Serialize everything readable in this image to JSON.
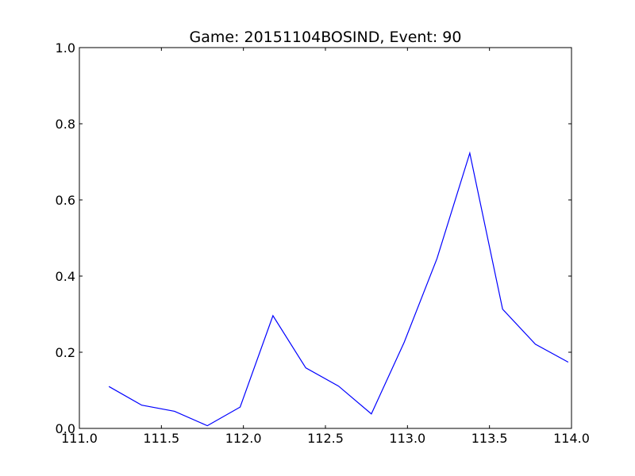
{
  "chart_data": {
    "type": "line",
    "title": "Game: 20151104BOSIND, Event: 90",
    "xlabel": "",
    "ylabel": "",
    "xlim": [
      111.0,
      114.0
    ],
    "ylim": [
      0.0,
      1.0
    ],
    "x_ticks": [
      "111.0",
      "111.5",
      "112.0",
      "112.5",
      "113.0",
      "113.5",
      "114.0"
    ],
    "y_ticks": [
      "0.0",
      "0.2",
      "0.4",
      "0.6",
      "0.8",
      "1.0"
    ],
    "grid": false,
    "series": [
      {
        "color": "#0000ff",
        "x": [
          111.18,
          111.38,
          111.58,
          111.78,
          111.98,
          112.18,
          112.38,
          112.58,
          112.78,
          112.98,
          113.18,
          113.38,
          113.58,
          113.78,
          113.98
        ],
        "y": [
          0.11,
          0.061,
          0.045,
          0.007,
          0.056,
          0.296,
          0.159,
          0.111,
          0.038,
          0.226,
          0.446,
          0.723,
          0.313,
          0.221,
          0.174
        ]
      }
    ]
  }
}
